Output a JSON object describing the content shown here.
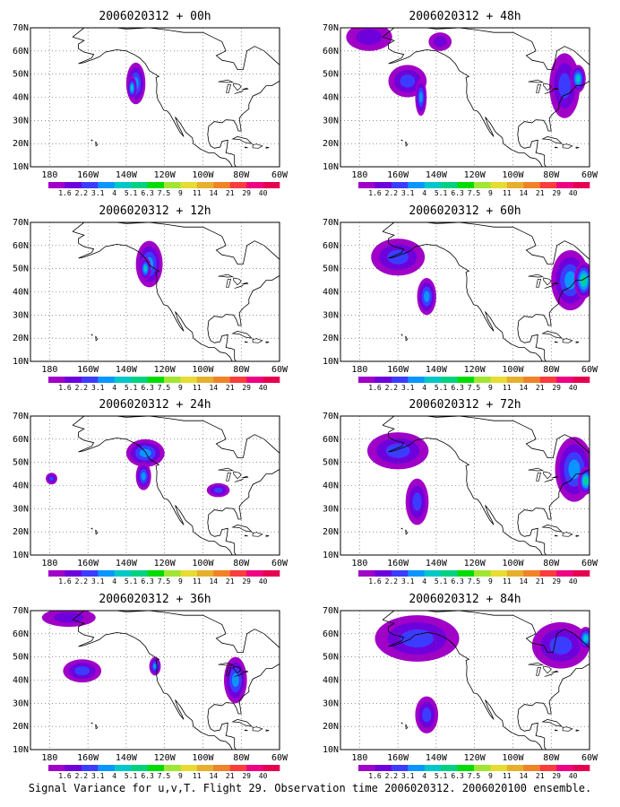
{
  "figure": {
    "caption": "Signal Variance for u,v,T. Flight 29. Observation time 2006020312. 2006020100 ensemble.",
    "x_tick_labels": [
      "180",
      "160W",
      "140W",
      "120W",
      "100W",
      "80W",
      "60W"
    ],
    "y_tick_labels": [
      "10N",
      "20N",
      "30N",
      "40N",
      "50N",
      "60N",
      "70N"
    ],
    "colorbar": {
      "labels": [
        "1.6",
        "2.2",
        "3.1",
        "4",
        "5.1",
        "6.3",
        "7.5",
        "9",
        "11",
        "14",
        "21",
        "29",
        "40"
      ],
      "colors": [
        "#a000c8",
        "#6e00dc",
        "#3c3cff",
        "#0a96ff",
        "#00c8c8",
        "#00d282",
        "#00dc00",
        "#a0e632",
        "#e6dc32",
        "#e6af2d",
        "#f08228",
        "#fa3c3c",
        "#f00082",
        "#e60050"
      ]
    },
    "panels": [
      {
        "title": "2006020312 + 00h",
        "blobs": [
          {
            "lon": -135,
            "lat": 46,
            "rx": 5,
            "ry": 9,
            "level": 3
          },
          {
            "lon": -137,
            "lat": 44,
            "rx": 2.5,
            "ry": 5,
            "level": 4
          }
        ]
      },
      {
        "title": "2006020312 + 48h",
        "blobs": [
          {
            "lon": -175,
            "lat": 66,
            "rx": 12,
            "ry": 6,
            "level": 1
          },
          {
            "lon": -155,
            "lat": 47,
            "rx": 10,
            "ry": 7,
            "level": 2
          },
          {
            "lon": -148,
            "lat": 40,
            "rx": 3,
            "ry": 8,
            "level": 3
          },
          {
            "lon": -138,
            "lat": 64,
            "rx": 6,
            "ry": 4,
            "level": 1
          },
          {
            "lon": -73,
            "lat": 45,
            "rx": 8,
            "ry": 14,
            "level": 2
          },
          {
            "lon": -66,
            "lat": 48,
            "rx": 4,
            "ry": 6,
            "level": 4
          }
        ]
      },
      {
        "title": "2006020312 + 12h",
        "blobs": [
          {
            "lon": -128,
            "lat": 52,
            "rx": 7,
            "ry": 10,
            "level": 3
          },
          {
            "lon": -130,
            "lat": 50,
            "rx": 3,
            "ry": 5,
            "level": 4
          }
        ]
      },
      {
        "title": "2006020312 + 60h",
        "blobs": [
          {
            "lon": -160,
            "lat": 55,
            "rx": 14,
            "ry": 8,
            "level": 2
          },
          {
            "lon": -145,
            "lat": 38,
            "rx": 5,
            "ry": 8,
            "level": 3
          },
          {
            "lon": -70,
            "lat": 45,
            "rx": 10,
            "ry": 13,
            "level": 3
          },
          {
            "lon": -63,
            "lat": 45,
            "rx": 5,
            "ry": 8,
            "level": 5
          }
        ]
      },
      {
        "title": "2006020312 + 24h",
        "blobs": [
          {
            "lon": -130,
            "lat": 54,
            "rx": 10,
            "ry": 6,
            "level": 3
          },
          {
            "lon": -131,
            "lat": 44,
            "rx": 4,
            "ry": 6,
            "level": 3
          },
          {
            "lon": -179,
            "lat": 43,
            "rx": 3,
            "ry": 2.5,
            "level": 2
          },
          {
            "lon": -92,
            "lat": 38,
            "rx": 6,
            "ry": 3,
            "level": 2
          }
        ]
      },
      {
        "title": "2006020312 + 72h",
        "blobs": [
          {
            "lon": -160,
            "lat": 55,
            "rx": 16,
            "ry": 8,
            "level": 2
          },
          {
            "lon": -150,
            "lat": 33,
            "rx": 6,
            "ry": 10,
            "level": 2
          },
          {
            "lon": -68,
            "lat": 47,
            "rx": 10,
            "ry": 14,
            "level": 3
          },
          {
            "lon": -62,
            "lat": 42,
            "rx": 4,
            "ry": 6,
            "level": 5
          }
        ]
      },
      {
        "title": "2006020312 + 36h",
        "blobs": [
          {
            "lon": -170,
            "lat": 67,
            "rx": 14,
            "ry": 4,
            "level": 1
          },
          {
            "lon": -163,
            "lat": 44,
            "rx": 10,
            "ry": 5,
            "level": 2
          },
          {
            "lon": -125,
            "lat": 46,
            "rx": 3,
            "ry": 4,
            "level": 3
          },
          {
            "lon": -83,
            "lat": 40,
            "rx": 6,
            "ry": 10,
            "level": 3
          }
        ]
      },
      {
        "title": "2006020312 + 84h",
        "blobs": [
          {
            "lon": -150,
            "lat": 58,
            "rx": 22,
            "ry": 10,
            "level": 2
          },
          {
            "lon": -145,
            "lat": 25,
            "rx": 6,
            "ry": 8,
            "level": 2
          },
          {
            "lon": -75,
            "lat": 55,
            "rx": 15,
            "ry": 10,
            "level": 2
          },
          {
            "lon": -62,
            "lat": 58,
            "rx": 4,
            "ry": 5,
            "level": 4
          }
        ]
      }
    ]
  }
}
